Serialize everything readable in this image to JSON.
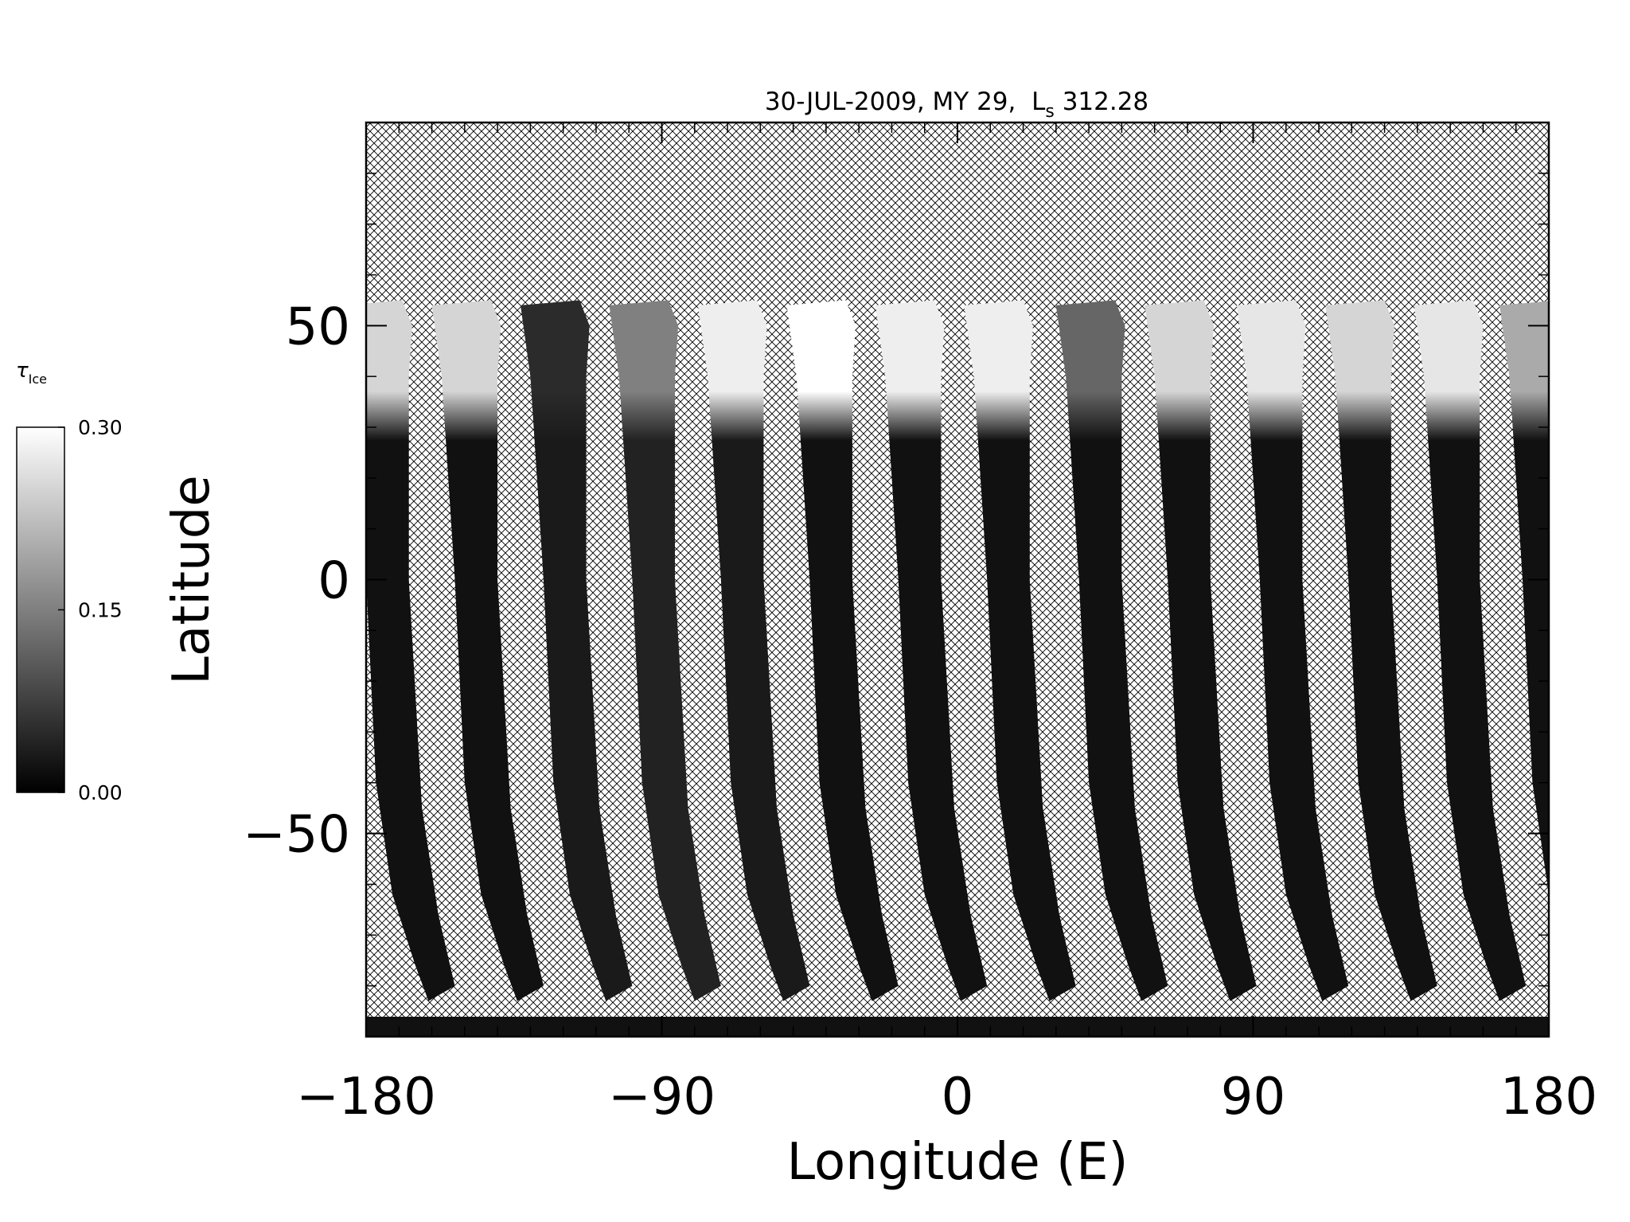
{
  "chart_data": {
    "type": "map",
    "title": "30-JUL-2009, MY 29,  L",
    "title_subscript": "s",
    "title_ls": "312.28",
    "xlabel": "Longitude (E)",
    "ylabel": "Latitude",
    "xlim": [
      -180,
      180
    ],
    "ylim": [
      -90,
      90
    ],
    "xticks": [
      {
        "value": -180,
        "label": "−180"
      },
      {
        "value": -90,
        "label": "−90"
      },
      0,
      90,
      180
    ],
    "yticks": [
      {
        "value": -50,
        "label": "−50"
      },
      0,
      50
    ],
    "xminorticks": [
      -170,
      -160,
      -150,
      -140,
      -130,
      -120,
      -110,
      -100,
      -80,
      -70,
      -60,
      -50,
      -40,
      -30,
      -20,
      -10,
      10,
      20,
      30,
      40,
      50,
      60,
      70,
      80,
      100,
      110,
      120,
      130,
      140,
      150,
      160,
      170
    ],
    "yminorticks": [
      -80,
      -70,
      -60,
      -40,
      -30,
      -20,
      -10,
      10,
      20,
      30,
      40,
      60,
      70,
      80
    ],
    "colorbar": {
      "label": "τ",
      "label_subscript": "Ice",
      "lim": [
        0,
        0.3
      ],
      "ticks": [
        {
          "value": 0,
          "label": "0.00"
        },
        {
          "value": 0.15,
          "label": "0.15"
        },
        {
          "value": 0.3,
          "label": "0.30"
        }
      ]
    },
    "swaths": [
      {
        "lon": -173,
        "tau_north": 0.25,
        "tau": 0.02
      },
      {
        "lon": -146,
        "tau_north": 0.25,
        "tau": 0.02
      },
      {
        "lon": -119,
        "tau_north": 0.05,
        "tau": 0.03
      },
      {
        "lon": -92,
        "tau_north": 0.15,
        "tau": 0.04
      },
      {
        "lon": -65,
        "tau_north": 0.28,
        "tau": 0.03
      },
      {
        "lon": -38,
        "tau_north": 0.3,
        "tau": 0.02
      },
      {
        "lon": -11,
        "tau_north": 0.28,
        "tau": 0.02
      },
      {
        "lon": 16,
        "tau_north": 0.28,
        "tau": 0.02
      },
      {
        "lon": 44,
        "tau_north": 0.12,
        "tau": 0.02
      },
      {
        "lon": 71,
        "tau_north": 0.25,
        "tau": 0.02
      },
      {
        "lon": 99,
        "tau_north": 0.27,
        "tau": 0.02
      },
      {
        "lon": 126,
        "tau_north": 0.25,
        "tau": 0.02
      },
      {
        "lon": 153,
        "tau_north": 0.27,
        "tau": 0.02
      },
      {
        "lon": 179,
        "tau_north": 0.2,
        "tau": 0.02
      }
    ]
  }
}
